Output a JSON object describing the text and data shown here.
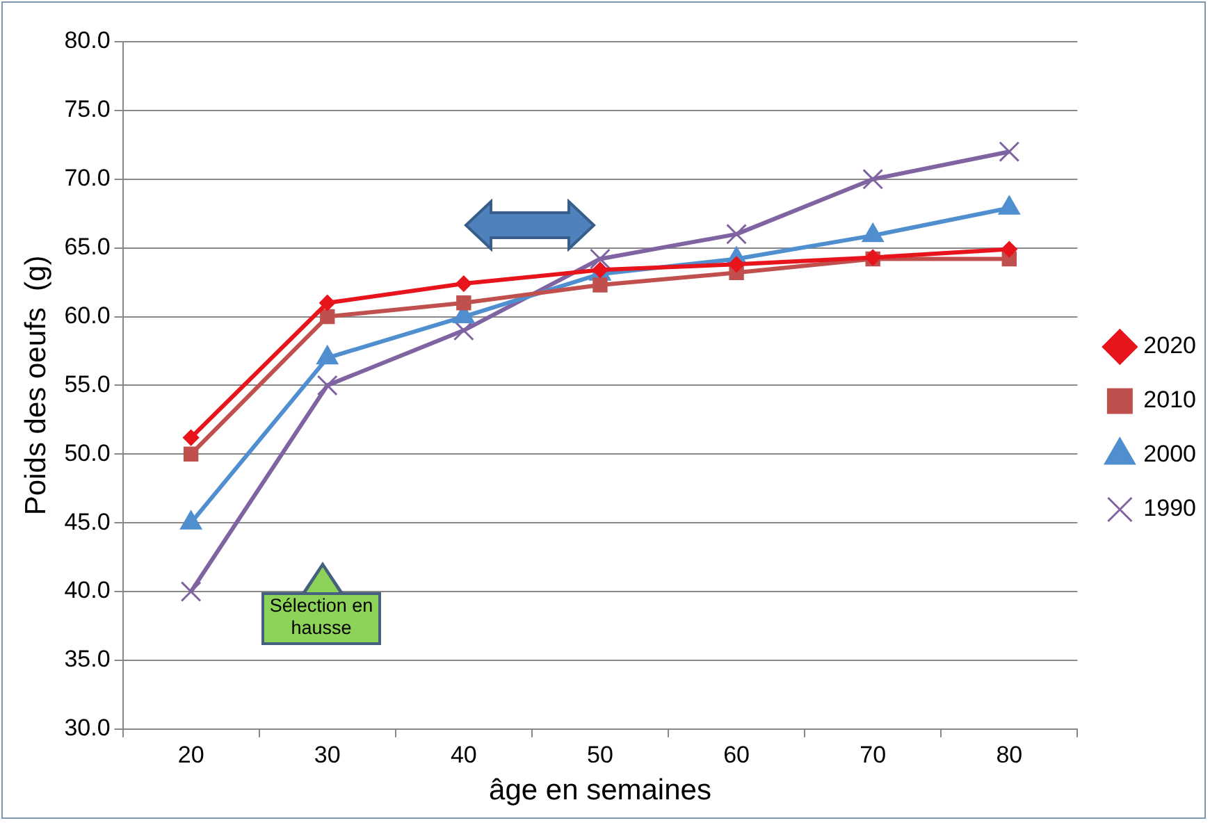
{
  "chart_data": {
    "type": "line",
    "xlabel": "âge en semaines",
    "ylabel": "Poids des oeufs  (g)",
    "categories": [
      "20",
      "30",
      "40",
      "50",
      "60",
      "70",
      "80"
    ],
    "series": [
      {
        "name": "2020",
        "color": "#e8141c",
        "marker": "diamond",
        "values": [
          51.2,
          61.0,
          62.4,
          63.4,
          63.8,
          64.3,
          64.9
        ]
      },
      {
        "name": "2010",
        "color": "#c0504d",
        "marker": "square",
        "values": [
          50.0,
          60.0,
          61.0,
          62.3,
          63.2,
          64.2,
          64.2
        ]
      },
      {
        "name": "2000",
        "color": "#4f8fcf",
        "marker": "triangle",
        "values": [
          45.0,
          57.0,
          60.0,
          63.1,
          64.2,
          65.9,
          67.9
        ]
      },
      {
        "name": "1990",
        "color": "#8064a2",
        "marker": "cross",
        "values": [
          40.0,
          55.0,
          59.0,
          64.2,
          66.0,
          70.0,
          72.0
        ]
      }
    ],
    "ylim": [
      30,
      80
    ],
    "yticks": [
      {
        "value": 30,
        "label": "30.0"
      },
      {
        "value": 35,
        "label": "35.0"
      },
      {
        "value": 40,
        "label": "40.0"
      },
      {
        "value": 45,
        "label": "45.0"
      },
      {
        "value": 50,
        "label": "50.0"
      },
      {
        "value": 55,
        "label": "55.0"
      },
      {
        "value": 60,
        "label": "60.0"
      },
      {
        "value": 65,
        "label": "65.0"
      },
      {
        "value": 70,
        "label": "70.0"
      },
      {
        "value": 75,
        "label": "75.0"
      },
      {
        "value": 80,
        "label": "80.0"
      }
    ],
    "grid": "y",
    "legend": "right",
    "line_style": "solid",
    "annotations": [
      "Sélection en hausse"
    ]
  }
}
